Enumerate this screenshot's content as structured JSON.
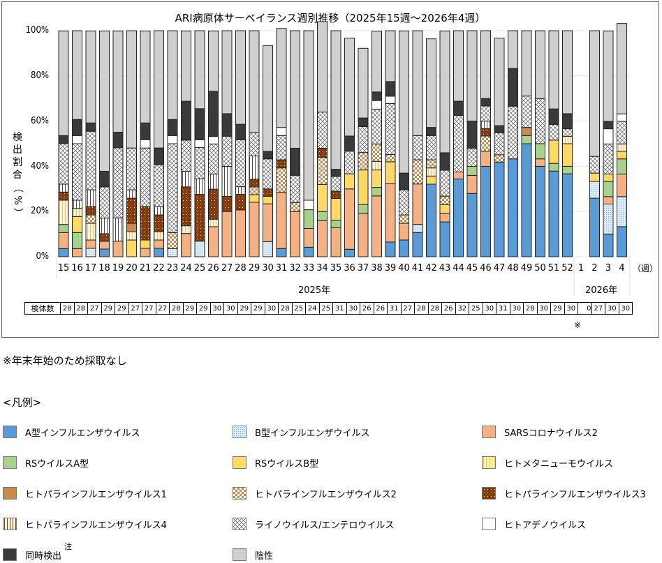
{
  "chart_data": {
    "type": "bar",
    "stacked": true,
    "title": "ARI病原体サーベイランス週別推移（2025年15週～2026年4週）",
    "ylabel": "検出割合（%）",
    "xlabel_unit": "（週）",
    "ylim": [
      0,
      100
    ],
    "yticks": [
      "0%",
      "20%",
      "40%",
      "60%",
      "80%",
      "100%"
    ],
    "grid": true,
    "years": [
      {
        "label": "2025年",
        "weeks": [
          "15",
          "16",
          "17",
          "18",
          "19",
          "20",
          "21",
          "22",
          "23",
          "24",
          "25",
          "26",
          "27",
          "28",
          "29",
          "30",
          "31",
          "32",
          "33",
          "34",
          "35",
          "36",
          "37",
          "38",
          "39",
          "40",
          "41",
          "42",
          "43",
          "44",
          "45",
          "46",
          "47",
          "48",
          "49",
          "50",
          "51",
          "52"
        ]
      },
      {
        "label": "2026年",
        "weeks": [
          "1",
          "2",
          "3",
          "4"
        ]
      }
    ],
    "categories": [
      "15",
      "16",
      "17",
      "18",
      "19",
      "20",
      "21",
      "22",
      "23",
      "24",
      "25",
      "26",
      "27",
      "28",
      "29",
      "30",
      "31",
      "32",
      "33",
      "34",
      "35",
      "36",
      "37",
      "38",
      "39",
      "40",
      "41",
      "42",
      "43",
      "44",
      "45",
      "46",
      "47",
      "48",
      "49",
      "50",
      "51",
      "52",
      "1",
      "2",
      "3",
      "4"
    ],
    "sample_counts_label": "検体数",
    "sample_counts": [
      28,
      28,
      27,
      29,
      29,
      27,
      27,
      27,
      28,
      29,
      29,
      30,
      30,
      29,
      29,
      30,
      28,
      25,
      24,
      25,
      31,
      30,
      26,
      26,
      31,
      27,
      28,
      28,
      26,
      32,
      25,
      30,
      31,
      30,
      28,
      30,
      29,
      30,
      0,
      27,
      30,
      30
    ],
    "series": [
      {
        "name": "A型インフルエンザウイルス",
        "color": "#5b9bd5",
        "pattern": "solid",
        "values": [
          3.6,
          0,
          0,
          3.4,
          0,
          0,
          0,
          3.7,
          0,
          0,
          0,
          0,
          0,
          0,
          0,
          0,
          3.6,
          0,
          4.2,
          0,
          0,
          3.3,
          0,
          0,
          6.5,
          7.4,
          10.7,
          32.1,
          15.4,
          34.4,
          28,
          40,
          41.9,
          43.3,
          50,
          40,
          37.9,
          36.7,
          0,
          25.9,
          10,
          13.3
        ]
      },
      {
        "name": "B型インフルエンザウイルス",
        "color": "#ddebf7",
        "pattern": "dots",
        "values": [
          0,
          0,
          3.7,
          0,
          0,
          0,
          0,
          0,
          3.6,
          0,
          6.9,
          0,
          0,
          0,
          0,
          6.7,
          0,
          0,
          0,
          0,
          0,
          0,
          0,
          0,
          0,
          0,
          3.6,
          0,
          0,
          0,
          0,
          0,
          0,
          0,
          0,
          0,
          0,
          0,
          0,
          7.4,
          13.3,
          13.3
        ]
      },
      {
        "name": "SARSコロナウイルス2",
        "color": "#f4b183",
        "pattern": "solid",
        "values": [
          7.1,
          3.6,
          3.7,
          3.4,
          6.9,
          0,
          3.7,
          3.7,
          0,
          10.3,
          0,
          13.3,
          20,
          20.7,
          24.1,
          16.7,
          25,
          20,
          8.3,
          16,
          12.9,
          26.7,
          19.2,
          26.9,
          25.8,
          7.4,
          17.9,
          0,
          3.8,
          3.1,
          8,
          6.7,
          0,
          0,
          0,
          3.3,
          0,
          0,
          0,
          0,
          3.3,
          10
        ]
      },
      {
        "name": "RSウイルスA型",
        "color": "#a9d18e",
        "pattern": "solid",
        "values": [
          3.6,
          7.1,
          0,
          0,
          0,
          0,
          0,
          0,
          0,
          0,
          0,
          0,
          0,
          0,
          0,
          0,
          0,
          0,
          8.3,
          4,
          3.2,
          0,
          3.8,
          3.8,
          0,
          0,
          0,
          0,
          0,
          0,
          4,
          0,
          0,
          0,
          3.6,
          6.7,
          3.4,
          3.3,
          0,
          0,
          6.7,
          6.7
        ]
      },
      {
        "name": "RSウイルスB型",
        "color": "#ffd966",
        "pattern": "solid",
        "values": [
          0,
          7.1,
          0,
          0,
          0,
          7.4,
          3.7,
          0,
          0,
          0,
          0,
          0,
          0,
          0,
          3.4,
          3.3,
          0,
          0,
          0,
          12,
          9.7,
          6.7,
          15.4,
          7.7,
          9.7,
          0,
          0,
          3.6,
          3.8,
          0,
          0,
          0,
          0,
          0,
          0,
          0,
          10.3,
          10,
          0,
          3.7,
          3.3,
          3.3
        ]
      },
      {
        "name": "ヒトメタニューモウイルス",
        "color": "#fff2cc",
        "pattern": "vstripes-yellow",
        "values": [
          10.7,
          3.6,
          7.4,
          0,
          0,
          3.7,
          0,
          3.7,
          0,
          3.4,
          0,
          3.3,
          0,
          0,
          0,
          0,
          0,
          0,
          0,
          0,
          0,
          0,
          0,
          3.8,
          0,
          0,
          0,
          3.6,
          0,
          0,
          0,
          0,
          0,
          0,
          0,
          0,
          0,
          3.3,
          0,
          0,
          0,
          3.3
        ]
      },
      {
        "name": "ヒトパラインフルエンザウイルス1",
        "color": "#c9894f",
        "pattern": "solid",
        "values": [
          0,
          0,
          0,
          0,
          0,
          3.7,
          0,
          0,
          0,
          0,
          0,
          0,
          0,
          0,
          0,
          0,
          0,
          0,
          0,
          0,
          0,
          0,
          0,
          0,
          0,
          0,
          0,
          0,
          0,
          0,
          0,
          0,
          0,
          0,
          3.6,
          0,
          0,
          0,
          0,
          0,
          0,
          0
        ]
      },
      {
        "name": "ヒトパラインフルエンザウイルス2",
        "color": "#c9894f",
        "pattern": "checker",
        "values": [
          0,
          0,
          3.7,
          0,
          0,
          0,
          0,
          0,
          7.1,
          0,
          0,
          0,
          0,
          0,
          3.4,
          0,
          10.7,
          4,
          0,
          12,
          0,
          0,
          7.7,
          7.7,
          3.2,
          3.7,
          10.7,
          3.6,
          3.8,
          0,
          0,
          6.7,
          3.2,
          0,
          0,
          0,
          0,
          0,
          0,
          0,
          0,
          0
        ]
      },
      {
        "name": "ヒトパラインフルエンザウイルス3",
        "color": "#843c0c",
        "pattern": "dotted-brown",
        "values": [
          3.6,
          0,
          3.7,
          3.4,
          0,
          11.1,
          14.8,
          7.4,
          0,
          17.2,
          20.7,
          13.3,
          6.7,
          6.9,
          3.4,
          3.3,
          3.6,
          0,
          0,
          4,
          3.2,
          0,
          0,
          0,
          0,
          0,
          0,
          0,
          0,
          0,
          0,
          3.3,
          0,
          0,
          0,
          0,
          0,
          0,
          0,
          0,
          0,
          0
        ]
      },
      {
        "name": "ヒトパラインフルエンザウイルス4",
        "color": "#fbe5d6",
        "pattern": "vstripes-brown",
        "values": [
          3.5,
          3.6,
          7.4,
          6.9,
          10.3,
          3.7,
          0,
          3.7,
          0,
          6.9,
          6.9,
          6.7,
          13.3,
          3.4,
          10.3,
          0,
          0,
          0,
          0,
          0,
          0,
          0,
          0,
          0,
          0,
          0,
          0,
          0,
          0,
          0,
          0,
          3.3,
          0,
          0,
          0,
          0,
          0,
          0,
          0,
          0,
          0,
          0
        ]
      },
      {
        "name": "ライノウイルス/エンテロウイルス",
        "color": "#ffffff",
        "pattern": "crosshatch",
        "values": [
          17.9,
          25,
          25.9,
          13.8,
          31,
          18.5,
          25.9,
          18.5,
          39.3,
          13.8,
          13.8,
          13.3,
          13.3,
          20.7,
          10.3,
          13.3,
          10.7,
          12,
          0,
          16,
          6.5,
          10,
          11.5,
          15.4,
          22.6,
          11.1,
          10.7,
          10.7,
          11.5,
          25,
          8,
          6.7,
          9.7,
          23.3,
          13.9,
          20,
          6.9,
          3.3,
          0,
          7.4,
          13.3,
          10
        ]
      },
      {
        "name": "ヒトアデノウイルス",
        "color": "#ffffff",
        "pattern": "solid",
        "values": [
          0,
          3.6,
          0,
          0,
          0,
          0,
          3.7,
          0,
          3.6,
          0,
          3.4,
          3.3,
          0,
          0,
          0,
          0,
          3.6,
          0,
          4.2,
          0,
          0,
          0,
          0,
          3.8,
          3.2,
          0,
          0,
          0,
          0,
          0,
          0,
          0,
          0,
          0,
          0,
          0,
          0,
          0,
          0,
          0,
          6.7,
          3.3
        ]
      },
      {
        "name": "同時検出",
        "color": "#3a3a3a",
        "pattern": "solid",
        "values": [
          3.6,
          7.1,
          3.7,
          6.9,
          6.9,
          0,
          7.4,
          7.4,
          7.1,
          17.2,
          13.8,
          20,
          10,
          6.9,
          0,
          3.3,
          0,
          12,
          0,
          0,
          3.2,
          6.7,
          3.8,
          3.8,
          6.5,
          7.4,
          0,
          3.6,
          7.7,
          6.3,
          12,
          3.3,
          3.2,
          16.7,
          0,
          0,
          6.9,
          6.7,
          0,
          0,
          3.3,
          0
        ]
      },
      {
        "name": "陰性",
        "color": "#d0cece",
        "pattern": "solid",
        "values": [
          46.3,
          39.3,
          40.7,
          62.1,
          44.8,
          51.9,
          40.7,
          51.9,
          39.3,
          31.1,
          34.5,
          26.7,
          36.7,
          41.4,
          45.1,
          46.8,
          43.8,
          52,
          75,
          40,
          61.3,
          43.3,
          30.8,
          26.9,
          22.5,
          62.9,
          46.4,
          39.2,
          53.9,
          31.2,
          40,
          30,
          38.7,
          16.7,
          28.9,
          30,
          34.6,
          36.7,
          0,
          55.6,
          40,
          40
        ]
      }
    ],
    "annotation": "※"
  },
  "footnote": "※年末年始のため採取なし",
  "legend": {
    "heading": "<凡例>",
    "note_mark": "注",
    "items": [
      {
        "label": "A型インフルエンザウイルス"
      },
      {
        "label": "B型インフルエンザウイルス"
      },
      {
        "label": "SARSコロナウイルス2"
      },
      {
        "label": "RSウイルスA型"
      },
      {
        "label": "RSウイルスB型"
      },
      {
        "label": "ヒトメタニューモウイルス"
      },
      {
        "label": "ヒトパラインフルエンザウイルス1"
      },
      {
        "label": "ヒトパラインフルエンザウイルス2"
      },
      {
        "label": "ヒトパラインフルエンザウイルス3"
      },
      {
        "label": "ヒトパラインフルエンザウイルス4"
      },
      {
        "label": "ライノウイルス/エンテロウイルス"
      },
      {
        "label": "ヒトアデノウイルス"
      },
      {
        "label": "同時検出"
      },
      {
        "label": "陰性"
      }
    ]
  }
}
